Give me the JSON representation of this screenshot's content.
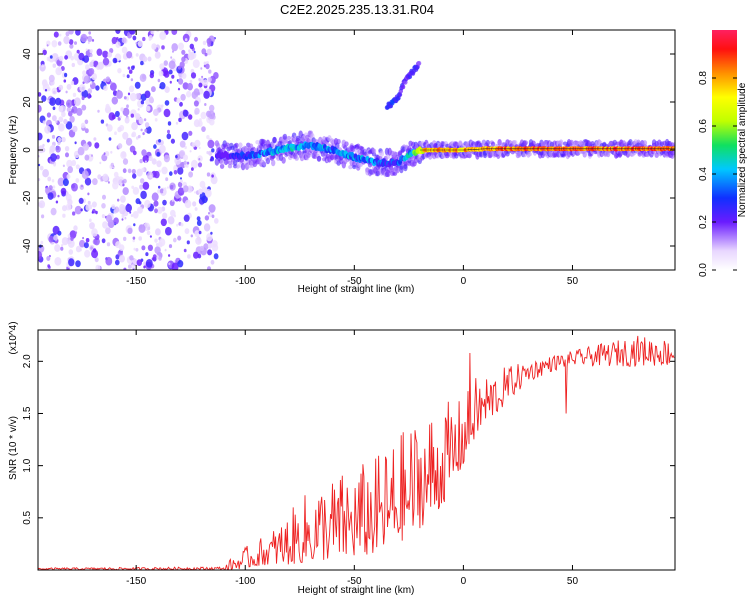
{
  "title": "C2E2.2025.235.13.31.R04",
  "chart_data": [
    {
      "type": "heatmap",
      "xlabel": "Height of straight line (km)",
      "ylabel": "Frequency (Hz)",
      "xlim": [
        -195,
        97
      ],
      "ylim": [
        -50,
        50
      ],
      "xticks": [
        -150,
        -100,
        -50,
        0,
        50
      ],
      "yticks": [
        -40,
        -20,
        0,
        20,
        40
      ],
      "colorbar": {
        "label": "Normalized spectral amplitude",
        "range": [
          0.0,
          1.0
        ],
        "ticks": [
          "0.0",
          "0.2",
          "0.4",
          "0.6",
          "0.8"
        ]
      },
      "noise_region_x": [
        -195,
        -113
      ],
      "ridge": {
        "x": [
          -113,
          -100,
          -90,
          -80,
          -70,
          -60,
          -50,
          -40,
          -35,
          -30,
          -25,
          -20,
          -15,
          -10,
          0,
          10,
          20,
          40,
          60,
          80,
          97
        ],
        "freq": [
          -2,
          -2.5,
          -1,
          1,
          2,
          0,
          -3,
          -5,
          -5.5,
          -5,
          -2,
          0,
          0,
          0,
          0,
          0.5,
          0.5,
          0.5,
          0.5,
          0.5,
          0.5
        ],
        "amplitude": [
          0.25,
          0.35,
          0.45,
          0.5,
          0.5,
          0.45,
          0.45,
          0.45,
          0.4,
          0.4,
          0.5,
          0.75,
          0.9,
          0.9,
          0.85,
          0.9,
          0.95,
          0.95,
          0.95,
          0.95,
          0.95
        ]
      },
      "branch": {
        "x": [
          -35,
          -32,
          -30,
          -27,
          -23,
          -20
        ],
        "freq": [
          18,
          20,
          22,
          28,
          33,
          36
        ],
        "amplitude": [
          0.3,
          0.35,
          0.3,
          0.25,
          0.3,
          0.25
        ]
      }
    },
    {
      "type": "line",
      "xlabel": "Height of straight line (km)",
      "ylabel": "SNR (10 * v/v)",
      "y_scale_label": "(x10^4)",
      "xlim": [
        -195,
        97
      ],
      "ylim": [
        0,
        2.3
      ],
      "xticks": [
        -150,
        -100,
        -50,
        0,
        50
      ],
      "yticks": [
        "0.5",
        "1.0",
        "1.5",
        "2.0"
      ],
      "series": [
        {
          "name": "SNR",
          "color": "#ee2222",
          "x": [
            -195,
            -110,
            -105,
            -100,
            -90,
            -80,
            -70,
            -60,
            -50,
            -40,
            -30,
            -20,
            -10,
            0,
            5,
            10,
            20,
            30,
            40,
            50,
            60,
            70,
            80,
            97
          ],
          "envelope_high": [
            0.02,
            0.03,
            0.15,
            0.22,
            0.35,
            0.55,
            0.8,
            0.9,
            1.0,
            1.1,
            1.3,
            1.5,
            1.6,
            1.65,
            1.85,
            1.9,
            1.95,
            2.0,
            2.05,
            2.1,
            2.15,
            2.2,
            2.25,
            2.2
          ],
          "envelope_low": [
            0.0,
            0.0,
            0.0,
            0.02,
            0.05,
            0.05,
            0.08,
            0.1,
            0.12,
            0.15,
            0.25,
            0.4,
            0.6,
            1.0,
            1.25,
            1.4,
            1.6,
            1.8,
            1.9,
            1.95,
            1.95,
            1.95,
            1.95,
            1.95
          ],
          "notes": "noisy; dip to ~1.5 near x=47; spike ~2.1 near x=2"
        }
      ]
    }
  ]
}
